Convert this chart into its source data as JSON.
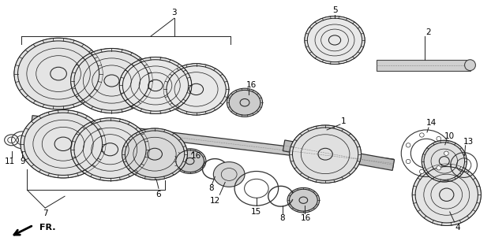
{
  "background_color": "#ffffff",
  "line_color": "#222222",
  "label_fontsize": 7.5,
  "fr_arrow_text": "FR.",
  "figsize": [
    6.22,
    3.2
  ],
  "dpi": 100,
  "gear_lw": 0.8,
  "shaft_lw": 0.9
}
